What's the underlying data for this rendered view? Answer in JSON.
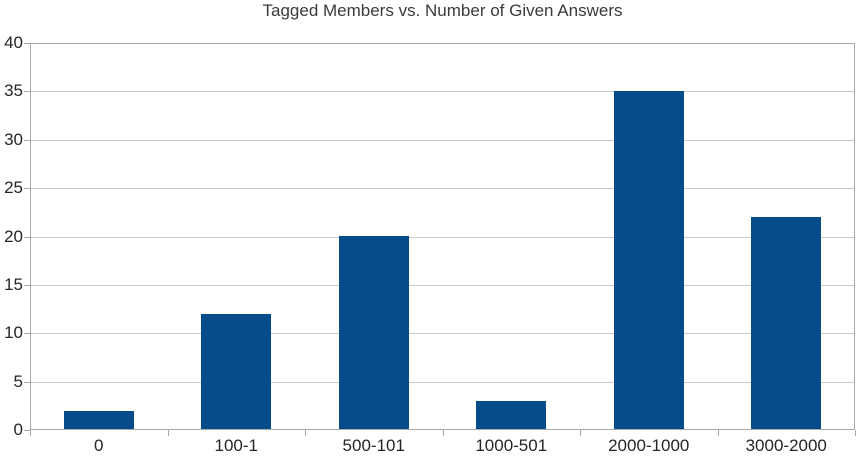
{
  "chart_data": {
    "type": "bar",
    "title": "Tagged Members vs. Number of Given Answers",
    "categories": [
      "0",
      "100-1",
      "500-101",
      "1000-501",
      "2000-1000",
      "3000-2000"
    ],
    "values": [
      2,
      12,
      20,
      3,
      35,
      22
    ],
    "xlabel": "",
    "ylabel": "",
    "ylim": [
      0,
      40
    ],
    "yticks": [
      0,
      5,
      10,
      15,
      20,
      25,
      30,
      35,
      40
    ],
    "grid": true,
    "legend": "none",
    "colors": {
      "bar": "#064C8A",
      "grid": "#C9C9C9",
      "axis": "#A9A9A9",
      "text": "#262626",
      "title_text": "#3A3A3A",
      "background": "#FFFFFF"
    }
  }
}
